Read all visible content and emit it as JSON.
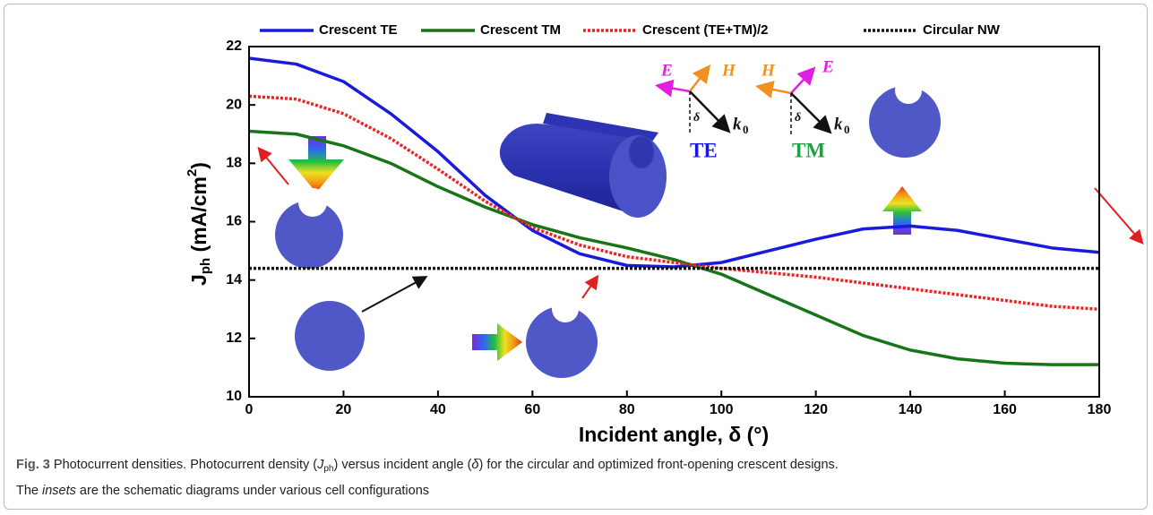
{
  "chart_data": {
    "type": "line",
    "xlabel": "Incident angle, δ (°)",
    "ylabel": {
      "main": "J",
      "sub": "ph",
      "unit": " (mA/cm",
      "sup": "2",
      "close": ")"
    },
    "x": [
      0,
      10,
      20,
      30,
      40,
      50,
      60,
      70,
      80,
      90,
      100,
      110,
      120,
      130,
      140,
      150,
      160,
      170,
      180
    ],
    "series": [
      {
        "name": "Crescent TE",
        "color": "#1a1adc",
        "dash": "solid",
        "values": [
          21.6,
          21.4,
          20.8,
          19.7,
          18.4,
          16.9,
          15.7,
          14.9,
          14.5,
          14.45,
          14.6,
          15.0,
          15.4,
          15.75,
          15.85,
          15.7,
          15.4,
          15.1,
          14.95
        ]
      },
      {
        "name": "Crescent TM",
        "color": "#177517",
        "dash": "solid",
        "values": [
          19.1,
          19.0,
          18.6,
          18.0,
          17.2,
          16.5,
          15.9,
          15.45,
          15.1,
          14.7,
          14.2,
          13.5,
          12.8,
          12.1,
          11.6,
          11.3,
          11.15,
          11.1,
          11.1
        ]
      },
      {
        "name": "Crescent (TE+TM)/2",
        "color": "#ee2222",
        "dash": "dotted",
        "values": [
          20.3,
          20.2,
          19.7,
          18.85,
          17.8,
          16.7,
          15.8,
          15.2,
          14.8,
          14.6,
          14.4,
          14.25,
          14.1,
          13.9,
          13.7,
          13.5,
          13.3,
          13.1,
          13.0
        ]
      },
      {
        "name": "Circular NW",
        "color": "#111111",
        "dash": "dotted",
        "values": [
          14.4,
          14.4,
          14.4,
          14.4,
          14.4,
          14.4,
          14.4,
          14.4,
          14.4,
          14.4,
          14.4,
          14.4,
          14.4,
          14.4,
          14.4,
          14.4,
          14.4,
          14.4,
          14.4
        ]
      }
    ],
    "xlim": [
      0,
      180
    ],
    "xticks": [
      0,
      20,
      40,
      60,
      80,
      100,
      120,
      140,
      160,
      180
    ],
    "ylim": [
      10,
      22
    ],
    "yticks": [
      10,
      12,
      14,
      16,
      18,
      20,
      22
    ],
    "legend": "top",
    "insets": {
      "te": {
        "label": "TE",
        "e": "E",
        "h": "H",
        "delta": "δ",
        "k": "k",
        "k_sub": "0"
      },
      "tm": {
        "label": "TM",
        "e": "E",
        "h": "H",
        "delta": "δ",
        "k": "k",
        "k_sub": "0"
      }
    }
  },
  "caption": {
    "lines": [
      [
        {
          "text": "Fig. 3",
          "style": "bold"
        },
        {
          "text": " Photocurrent densities. Photocurrent density (",
          "style": "normal"
        },
        {
          "text": "J",
          "style": "italic"
        },
        {
          "text": "ph",
          "style": "sub"
        },
        {
          "text": ") versus incident angle (",
          "style": "normal"
        },
        {
          "text": "δ",
          "style": "italic"
        },
        {
          "text": ") for the circular and optimized front-opening crescent designs.",
          "style": "normal"
        }
      ],
      [
        {
          "text": "The ",
          "style": "normal"
        },
        {
          "text": "insets",
          "style": "italic"
        },
        {
          "text": " are the schematic diagrams under various cell configurations",
          "style": "normal"
        }
      ]
    ]
  }
}
